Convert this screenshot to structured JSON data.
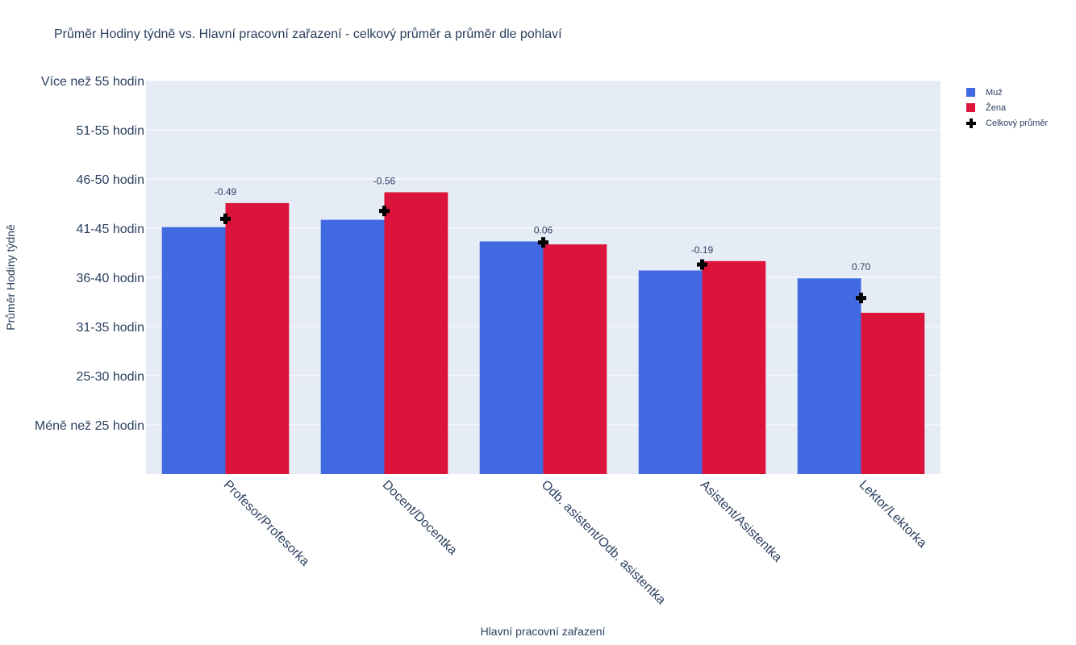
{
  "title": "Průměr Hodiny týdně vs. Hlavní pracovní zařazení - celkový průměr a průměr dle pohlaví",
  "colors": {
    "muz": "#4169e1",
    "zena": "#dc143c",
    "avg": "#000000",
    "plot_bg": "#e5ecf6",
    "grid": "#ffffff",
    "text": "#2a3f5f"
  },
  "legend": {
    "items": [
      "Muž",
      "Žena",
      "Celkový průměr"
    ]
  },
  "chart_data": {
    "type": "bar",
    "title": "Průměr Hodiny týdně vs. Hlavní pracovní zařazení - celkový průměr a průměr dle pohlaví",
    "xlabel": "Hlavní pracovní zařazení",
    "ylabel": "Průměr Hodiny týdně",
    "categories": [
      "Profesor/Profesorka",
      "Docent/Docentka",
      "Odb. asistent/Odb. asistentka",
      "Asistent/Asistentka",
      "Lektor/Lektorka"
    ],
    "y_tick_labels": [
      "Méně než 25 hodin",
      "25-30 hodin",
      "31-35 hodin",
      "36-40 hodin",
      "41-45 hodin",
      "46-50 hodin",
      "51-55 hodin",
      "Více než 55 hodin"
    ],
    "y_tick_values": [
      1,
      2,
      3,
      4,
      5,
      6,
      7,
      8
    ],
    "ylim": [
      0,
      8
    ],
    "series": [
      {
        "name": "Muž",
        "type": "bar",
        "values": [
          5.02,
          5.17,
          4.73,
          4.14,
          3.98
        ]
      },
      {
        "name": "Žena",
        "type": "bar",
        "values": [
          5.51,
          5.73,
          4.67,
          4.33,
          3.28
        ]
      },
      {
        "name": "Celkový průměr",
        "type": "marker",
        "values": [
          5.19,
          5.35,
          4.71,
          4.26,
          3.58
        ]
      }
    ],
    "annotations": [
      "-0.49",
      "-0.56",
      "0.06",
      "-0.19",
      "0.70"
    ]
  }
}
